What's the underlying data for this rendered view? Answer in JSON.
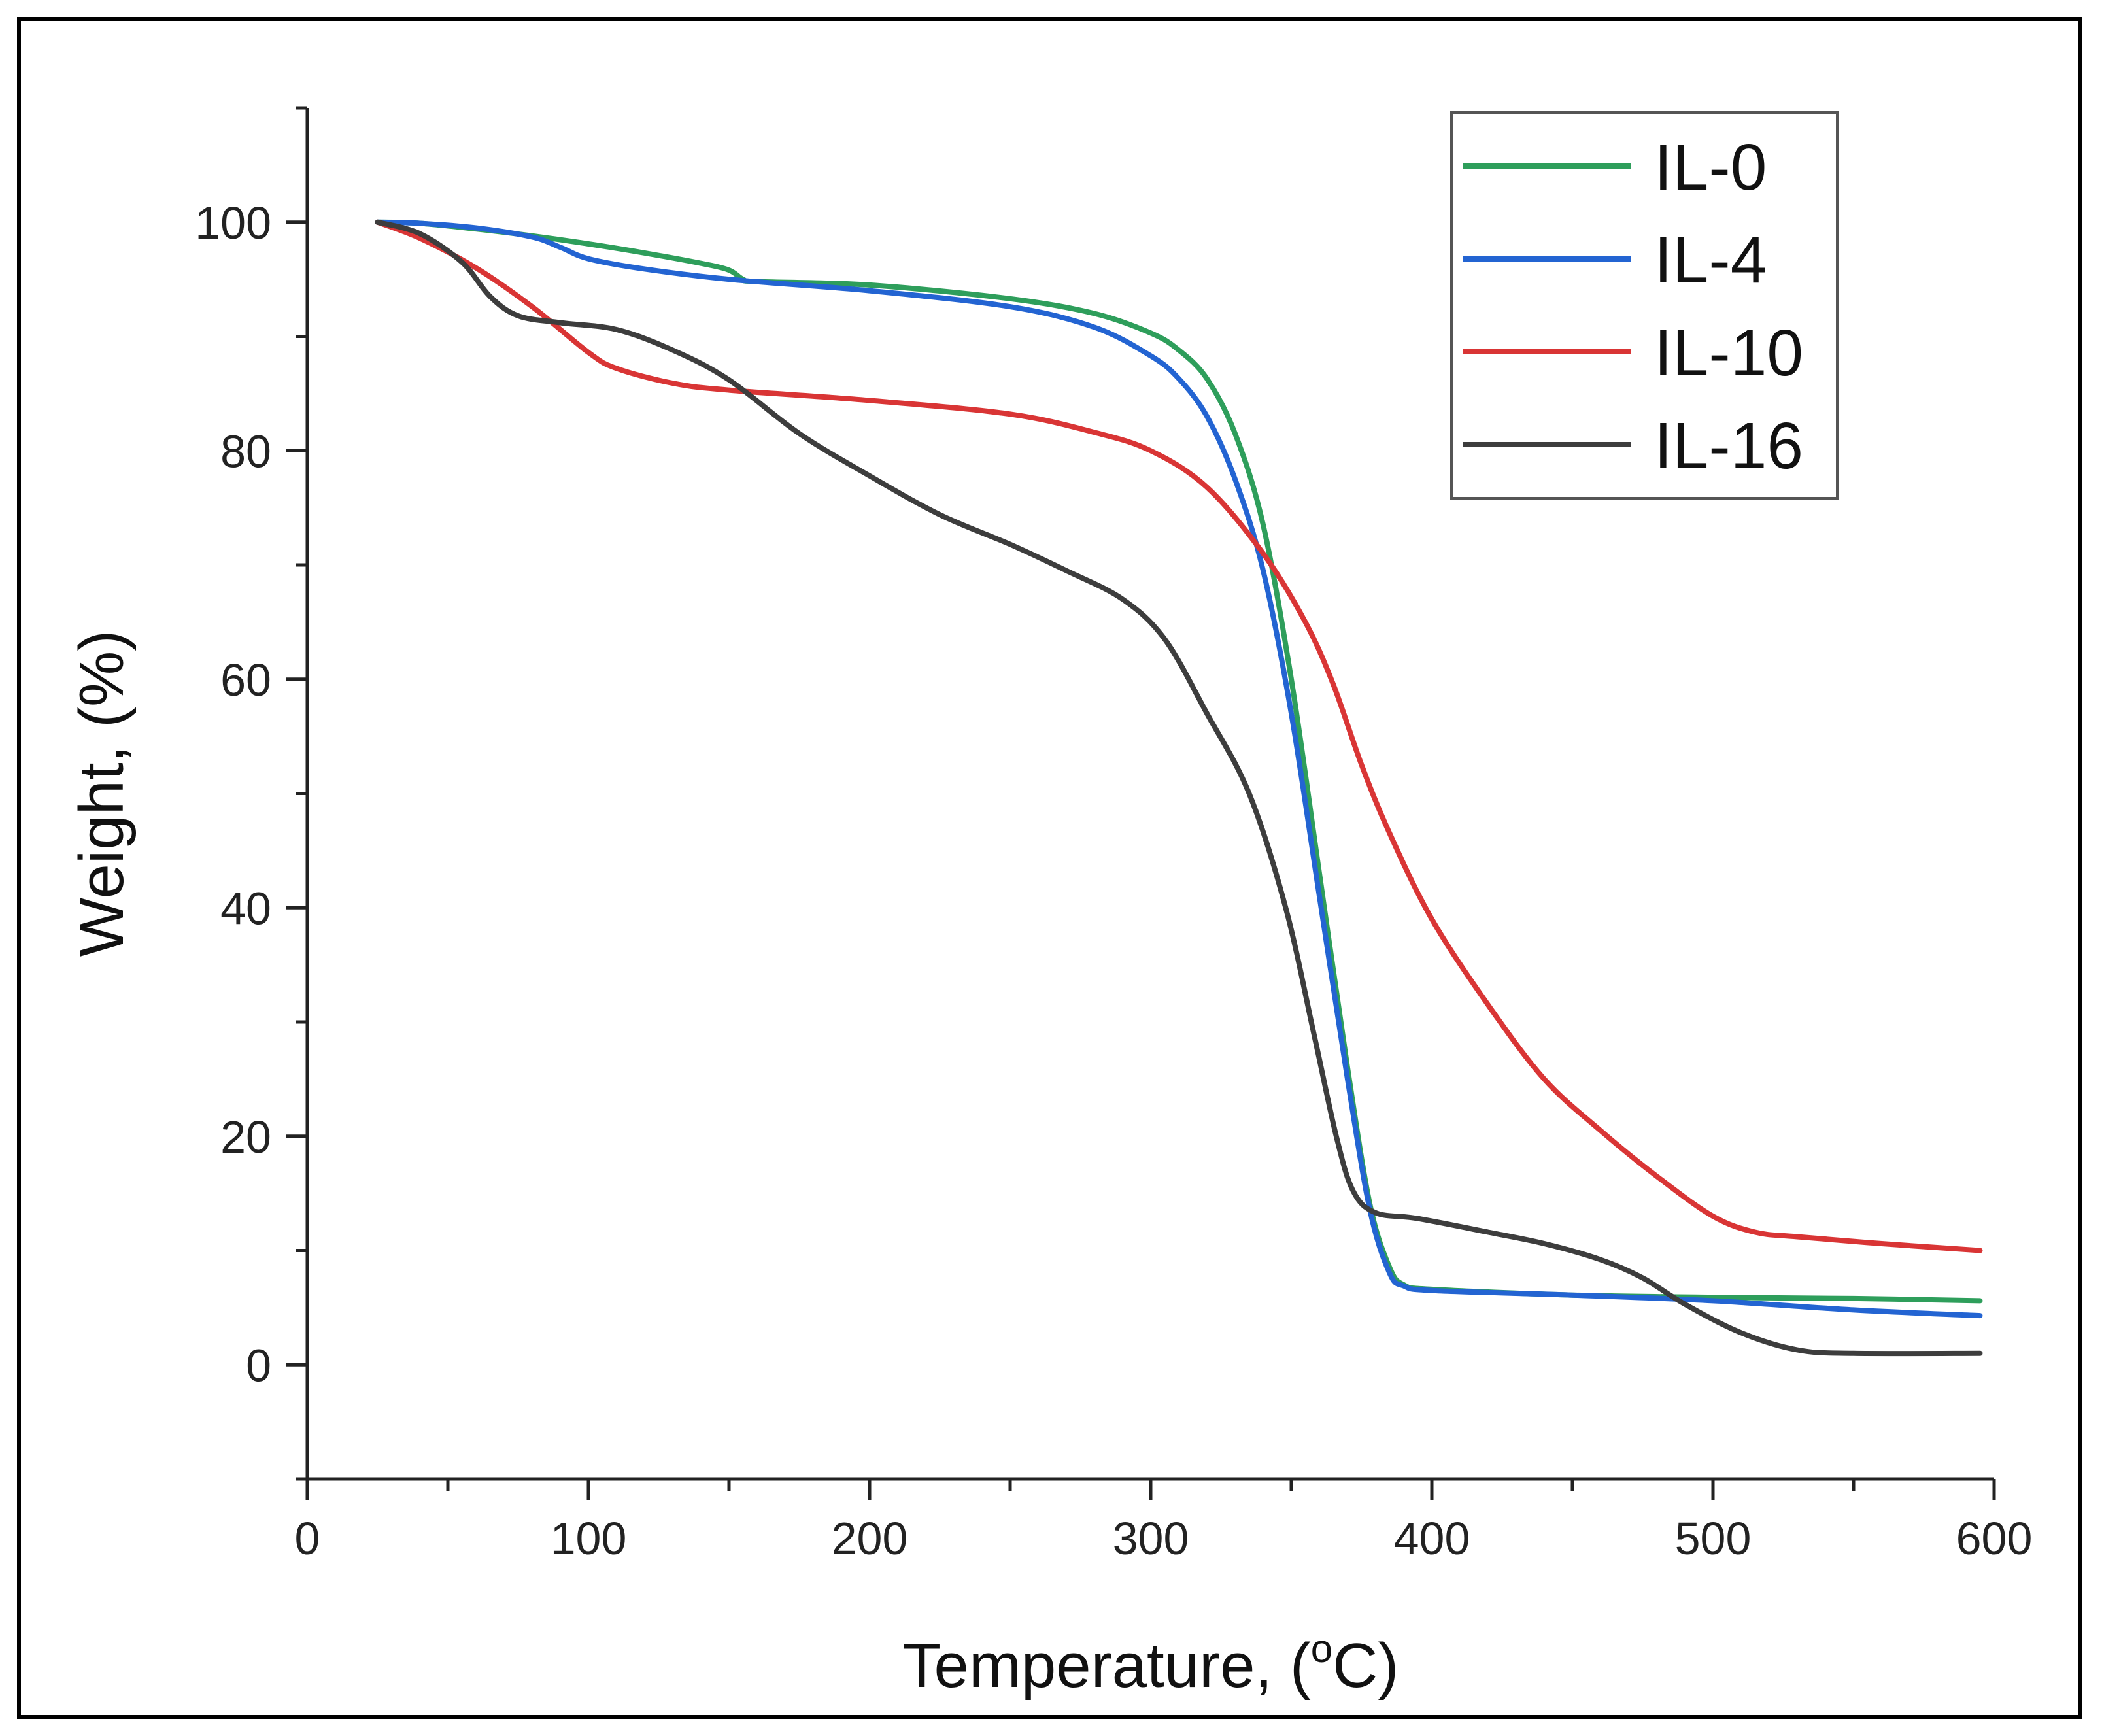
{
  "chart_data": {
    "type": "line",
    "title": "",
    "xlabel": "Temperature, (",
    "xlabel_sup": "o",
    "xlabel_tail": "C)",
    "ylabel": "Weight, (%)",
    "xlim": [
      0,
      600
    ],
    "ylim": [
      -10,
      110
    ],
    "x_ticks": [
      0,
      100,
      200,
      300,
      400,
      500,
      600
    ],
    "x_tick_labels": [
      "0",
      "100",
      "200",
      "300",
      "400",
      "500",
      "600"
    ],
    "y_ticks": [
      0,
      20,
      40,
      60,
      80,
      100
    ],
    "y_tick_labels": [
      "0",
      "20",
      "40",
      "60",
      "80",
      "100"
    ],
    "grid": false,
    "legend_position": "top-right",
    "series": [
      {
        "name": "IL-0",
        "color": "#2e9e5b",
        "points": [
          [
            25,
            100
          ],
          [
            40,
            99.9
          ],
          [
            60,
            99.4
          ],
          [
            80,
            98.8
          ],
          [
            100,
            98.1
          ],
          [
            120,
            97.3
          ],
          [
            140,
            96.4
          ],
          [
            150,
            95.8
          ],
          [
            155,
            95.0
          ],
          [
            160,
            94.8
          ],
          [
            200,
            94.5
          ],
          [
            250,
            93.3
          ],
          [
            280,
            92.0
          ],
          [
            300,
            90.3
          ],
          [
            310,
            88.8
          ],
          [
            320,
            86.3
          ],
          [
            330,
            81.5
          ],
          [
            340,
            73.5
          ],
          [
            350,
            60.0
          ],
          [
            360,
            43.0
          ],
          [
            370,
            26.0
          ],
          [
            378,
            14.0
          ],
          [
            385,
            8.5
          ],
          [
            390,
            7.0
          ],
          [
            400,
            6.6
          ],
          [
            450,
            6.1
          ],
          [
            500,
            5.9
          ],
          [
            550,
            5.8
          ],
          [
            595,
            5.6
          ]
        ]
      },
      {
        "name": "IL-4",
        "color": "#2364d2",
        "points": [
          [
            25,
            100
          ],
          [
            40,
            99.9
          ],
          [
            60,
            99.5
          ],
          [
            80,
            98.7
          ],
          [
            90,
            97.8
          ],
          [
            100,
            96.8
          ],
          [
            120,
            95.9
          ],
          [
            150,
            95.0
          ],
          [
            200,
            94.0
          ],
          [
            250,
            92.6
          ],
          [
            280,
            90.8
          ],
          [
            300,
            88.3
          ],
          [
            310,
            86.3
          ],
          [
            320,
            83.0
          ],
          [
            330,
            77.5
          ],
          [
            340,
            69.5
          ],
          [
            350,
            57.0
          ],
          [
            360,
            41.0
          ],
          [
            370,
            25.0
          ],
          [
            378,
            13.5
          ],
          [
            385,
            8.0
          ],
          [
            390,
            6.9
          ],
          [
            400,
            6.5
          ],
          [
            450,
            6.1
          ],
          [
            500,
            5.6
          ],
          [
            550,
            4.8
          ],
          [
            595,
            4.3
          ]
        ]
      },
      {
        "name": "IL-10",
        "color": "#d93535",
        "points": [
          [
            25,
            100
          ],
          [
            40,
            98.6
          ],
          [
            60,
            96.0
          ],
          [
            80,
            92.6
          ],
          [
            100,
            88.6
          ],
          [
            110,
            87.2
          ],
          [
            130,
            85.9
          ],
          [
            150,
            85.3
          ],
          [
            200,
            84.4
          ],
          [
            250,
            83.2
          ],
          [
            280,
            81.6
          ],
          [
            300,
            80.0
          ],
          [
            320,
            76.8
          ],
          [
            340,
            71.0
          ],
          [
            355,
            65.0
          ],
          [
            365,
            59.5
          ],
          [
            375,
            52.5
          ],
          [
            385,
            46.5
          ],
          [
            400,
            39.0
          ],
          [
            420,
            31.5
          ],
          [
            440,
            25.0
          ],
          [
            460,
            20.5
          ],
          [
            480,
            16.5
          ],
          [
            500,
            13.0
          ],
          [
            515,
            11.6
          ],
          [
            530,
            11.2
          ],
          [
            560,
            10.6
          ],
          [
            595,
            10.0
          ]
        ]
      },
      {
        "name": "IL-16",
        "color": "#3d3d3d",
        "points": [
          [
            25,
            100
          ],
          [
            40,
            99.0
          ],
          [
            55,
            96.5
          ],
          [
            65,
            93.5
          ],
          [
            75,
            91.8
          ],
          [
            90,
            91.2
          ],
          [
            110,
            90.6
          ],
          [
            130,
            88.8
          ],
          [
            150,
            86.2
          ],
          [
            175,
            81.5
          ],
          [
            200,
            77.8
          ],
          [
            225,
            74.4
          ],
          [
            250,
            71.8
          ],
          [
            270,
            69.5
          ],
          [
            290,
            67.0
          ],
          [
            305,
            63.5
          ],
          [
            320,
            57.0
          ],
          [
            335,
            50.0
          ],
          [
            348,
            40.0
          ],
          [
            358,
            29.0
          ],
          [
            366,
            20.0
          ],
          [
            372,
            15.2
          ],
          [
            380,
            13.3
          ],
          [
            395,
            12.8
          ],
          [
            420,
            11.6
          ],
          [
            440,
            10.6
          ],
          [
            460,
            9.2
          ],
          [
            475,
            7.6
          ],
          [
            490,
            5.3
          ],
          [
            510,
            2.8
          ],
          [
            530,
            1.3
          ],
          [
            550,
            1.0
          ],
          [
            595,
            1.0
          ]
        ]
      }
    ]
  }
}
